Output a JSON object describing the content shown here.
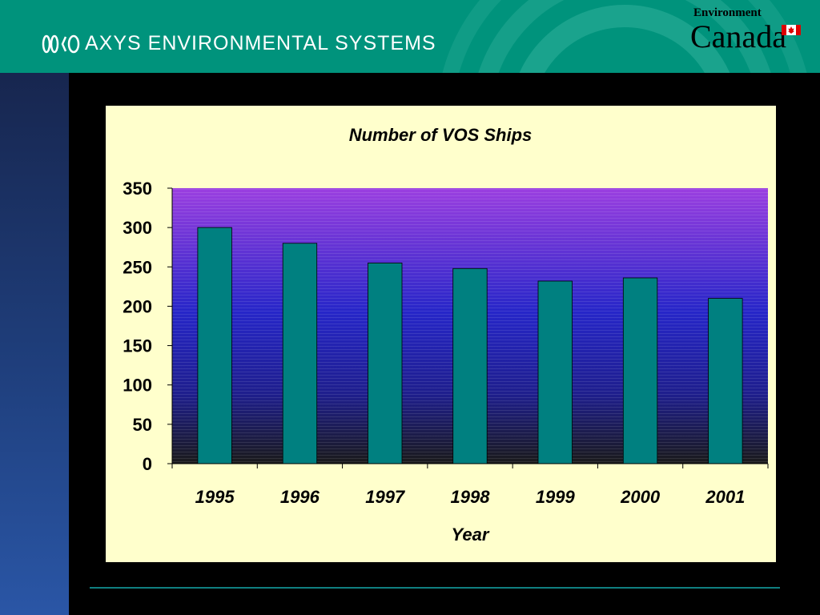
{
  "header": {
    "company_name": "AXYS ENVIRONMENTAL SYSTEMS",
    "agency_line1": "Environment",
    "agency_line2": "Canada",
    "logo_icon": "axys-logo-icon",
    "flag_icon": "canada-flag-icon"
  },
  "colors": {
    "header_bg": "#00937c",
    "chart_panel_bg": "#ffffcc",
    "bar_fill": "#008080",
    "plot_gradient_top": "#9b3fe0",
    "plot_gradient_mid": "#2626c8",
    "plot_gradient_bottom": "#1a1a1a"
  },
  "chart_data": {
    "type": "bar",
    "title": "Number of VOS Ships",
    "xlabel": "Year",
    "ylabel": "",
    "categories": [
      "1995",
      "1996",
      "1997",
      "1998",
      "1999",
      "2000",
      "2001"
    ],
    "values": [
      300,
      280,
      255,
      248,
      232,
      236,
      210
    ],
    "ylim": [
      0,
      350
    ],
    "yticks": [
      0,
      50,
      100,
      150,
      200,
      250,
      300,
      350
    ],
    "grid": false,
    "legend": "none"
  }
}
